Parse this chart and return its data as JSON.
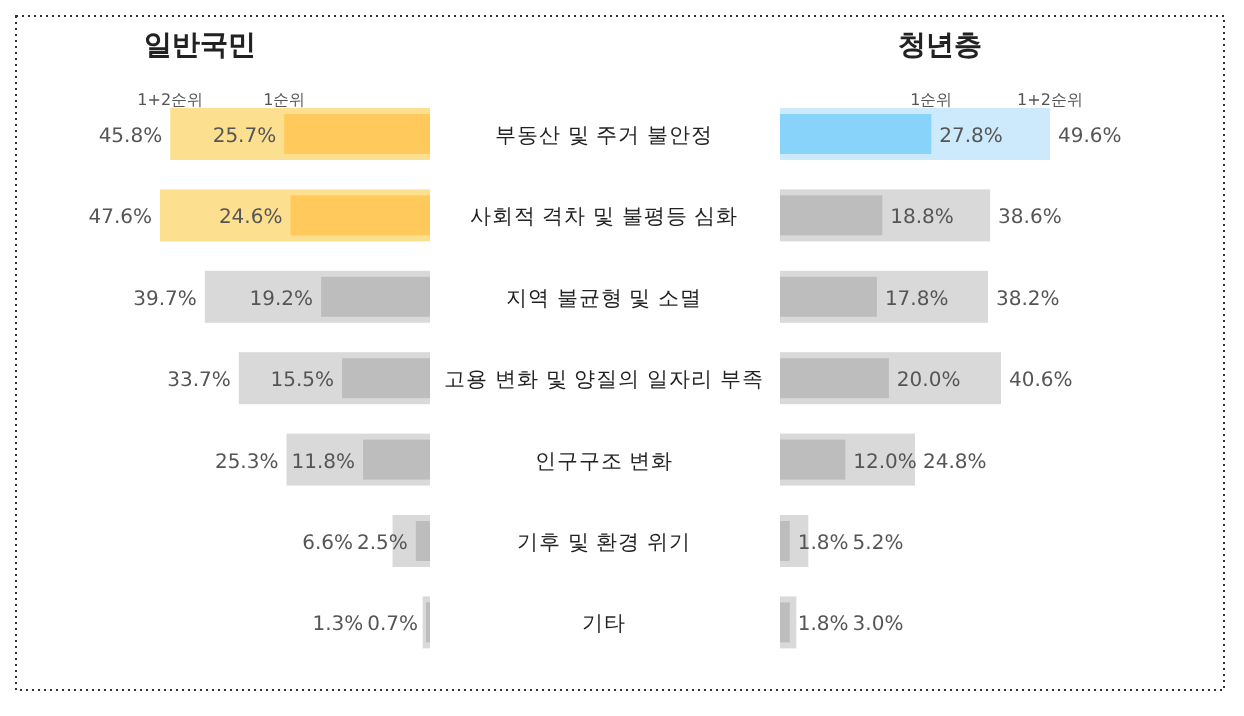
{
  "chart_data": [
    {
      "type": "bar",
      "orientation": "horizontal",
      "title": "일반국민",
      "legend": "top",
      "categories": [
        "부동산 및 주거 불안정",
        "사회적 격차 및 불평등 심화",
        "지역 불균형 및 소멸",
        "고용 변화 및 양질의 일자리 부족",
        "인구구조 변화",
        "기후 및 환경 위기",
        "기타"
      ],
      "series": [
        {
          "name": "1+2순위",
          "colors": [
            "#fde08f",
            "#fde08f",
            "#d9d9d9",
            "#d9d9d9",
            "#d9d9d9",
            "#d9d9d9",
            "#d9d9d9"
          ],
          "values": [
            45.8,
            47.6,
            39.7,
            33.7,
            25.3,
            6.6,
            1.3
          ],
          "value_labels": [
            "45.8%",
            "47.6%",
            "39.7%",
            "33.7%",
            "25.3%",
            "6.6%",
            "1.3%"
          ]
        },
        {
          "name": "1순위",
          "colors": [
            "#ffc95c",
            "#ffc95c",
            "#bdbdbd",
            "#bdbdbd",
            "#bdbdbd",
            "#bdbdbd",
            "#bdbdbd"
          ],
          "values": [
            25.7,
            24.6,
            19.2,
            15.5,
            11.8,
            2.5,
            0.7
          ],
          "value_labels": [
            "25.7%",
            "24.6%",
            "19.2%",
            "15.5%",
            "11.8%",
            "2.5%",
            "0.7%"
          ]
        }
      ]
    },
    {
      "type": "bar",
      "orientation": "horizontal",
      "title": "청년층",
      "legend": "top",
      "categories": [
        null,
        null,
        null,
        null,
        null,
        null,
        null
      ],
      "series": [
        {
          "name": "1+2순위",
          "colors": [
            "#cdeafc",
            "#d9d9d9",
            "#d9d9d9",
            "#d9d9d9",
            "#d9d9d9",
            "#d9d9d9",
            "#d9d9d9"
          ],
          "values": [
            49.6,
            38.6,
            38.2,
            40.6,
            24.8,
            5.2,
            3.0
          ],
          "value_labels": [
            "49.6%",
            "38.6%",
            "38.2%",
            "40.6%",
            "24.8%",
            "5.2%",
            "3.0%"
          ]
        },
        {
          "name": "1순위",
          "colors": [
            "#87d3fa",
            "#bdbdbd",
            "#bdbdbd",
            "#bdbdbd",
            "#bdbdbd",
            "#bdbdbd",
            "#bdbdbd"
          ],
          "values": [
            27.8,
            18.8,
            17.8,
            20.0,
            12.0,
            1.8,
            1.8
          ],
          "value_labels": [
            "27.8%",
            "18.8%",
            "17.8%",
            "20.0%",
            "12.0%",
            "1.8%",
            "1.8%"
          ]
        }
      ]
    }
  ]
}
